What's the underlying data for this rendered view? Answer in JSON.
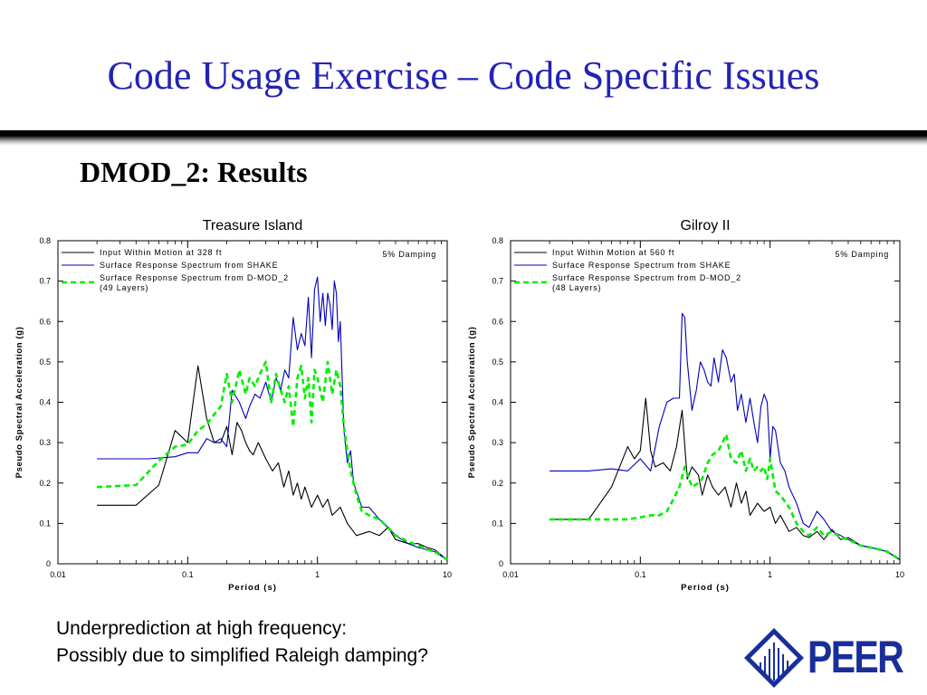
{
  "slide": {
    "title": "Code Usage Exercise – Code Specific Issues",
    "subtitle": "DMOD_2: Results",
    "caption_line1": "Underprediction at high frequency:",
    "caption_line2": "Possibly due to simplified Raleigh damping?",
    "logo_text": "PEER",
    "colors": {
      "title": "#2323b5",
      "logo": "#1a2e9a"
    }
  },
  "chart_data": [
    {
      "type": "line",
      "title": "Treasure Island",
      "xlabel": "Period (s)",
      "ylabel": "Pseudo Spectral Acceleration (g)",
      "xscale": "log",
      "xlim": [
        0.01,
        10
      ],
      "ylim": [
        0,
        0.8
      ],
      "xticks": [
        0.01,
        0.1,
        1,
        10
      ],
      "xtick_labels": [
        "0.01",
        "0.1",
        "1",
        "10"
      ],
      "yticks": [
        0,
        0.1,
        0.2,
        0.3,
        0.4,
        0.5,
        0.6,
        0.7,
        0.8
      ],
      "ytick_labels": [
        "0",
        "0.1",
        "0.2",
        "0.3",
        "0.4",
        "0.5",
        "0.6",
        "0.7",
        "0.8"
      ],
      "annotation": "5% Damping",
      "legend_position": "top-left",
      "series": [
        {
          "name": "Input Within Motion at 328 ft",
          "color": "#000000",
          "style": "solid",
          "x": [
            0.02,
            0.04,
            0.06,
            0.08,
            0.1,
            0.12,
            0.14,
            0.16,
            0.18,
            0.2,
            0.22,
            0.24,
            0.26,
            0.28,
            0.3,
            0.32,
            0.35,
            0.4,
            0.45,
            0.5,
            0.55,
            0.6,
            0.65,
            0.7,
            0.75,
            0.8,
            0.9,
            1.0,
            1.1,
            1.2,
            1.3,
            1.5,
            1.7,
            2.0,
            2.5,
            3.0,
            3.5,
            4.0,
            5.0,
            6.0,
            7.0,
            8.0,
            10.0
          ],
          "y": [
            0.145,
            0.145,
            0.195,
            0.33,
            0.3,
            0.49,
            0.36,
            0.3,
            0.3,
            0.34,
            0.27,
            0.35,
            0.33,
            0.3,
            0.28,
            0.27,
            0.3,
            0.26,
            0.23,
            0.25,
            0.19,
            0.23,
            0.17,
            0.2,
            0.16,
            0.19,
            0.14,
            0.17,
            0.14,
            0.16,
            0.12,
            0.14,
            0.1,
            0.07,
            0.08,
            0.07,
            0.09,
            0.06,
            0.05,
            0.05,
            0.04,
            0.035,
            0.01
          ]
        },
        {
          "name": "Surface Response Spectrum from SHAKE",
          "color": "#0000bb",
          "style": "solid",
          "x": [
            0.02,
            0.05,
            0.08,
            0.1,
            0.12,
            0.14,
            0.16,
            0.18,
            0.2,
            0.22,
            0.25,
            0.28,
            0.3,
            0.33,
            0.36,
            0.4,
            0.44,
            0.48,
            0.52,
            0.56,
            0.6,
            0.65,
            0.7,
            0.75,
            0.8,
            0.85,
            0.9,
            0.95,
            1.0,
            1.05,
            1.1,
            1.15,
            1.2,
            1.25,
            1.3,
            1.35,
            1.4,
            1.45,
            1.5,
            1.6,
            1.7,
            1.8,
            1.9,
            2.0,
            2.2,
            2.5,
            3.0,
            3.5,
            4.0,
            5.0,
            6.0,
            7.0,
            8.0,
            10.0
          ],
          "y": [
            0.26,
            0.26,
            0.265,
            0.275,
            0.275,
            0.31,
            0.3,
            0.31,
            0.29,
            0.43,
            0.4,
            0.36,
            0.39,
            0.42,
            0.41,
            0.45,
            0.4,
            0.46,
            0.43,
            0.48,
            0.46,
            0.61,
            0.53,
            0.57,
            0.54,
            0.66,
            0.51,
            0.68,
            0.71,
            0.6,
            0.67,
            0.59,
            0.67,
            0.64,
            0.58,
            0.7,
            0.67,
            0.55,
            0.6,
            0.33,
            0.25,
            0.28,
            0.2,
            0.18,
            0.14,
            0.14,
            0.11,
            0.09,
            0.07,
            0.05,
            0.04,
            0.035,
            0.03,
            0.01
          ]
        },
        {
          "name": "Surface Response Spectrum from D-MOD_2 (49 Layers)",
          "color": "#00ee00",
          "style": "dashed",
          "x": [
            0.02,
            0.04,
            0.06,
            0.08,
            0.1,
            0.12,
            0.14,
            0.16,
            0.18,
            0.2,
            0.22,
            0.25,
            0.28,
            0.3,
            0.33,
            0.36,
            0.4,
            0.44,
            0.48,
            0.52,
            0.56,
            0.6,
            0.65,
            0.7,
            0.75,
            0.8,
            0.85,
            0.9,
            0.95,
            1.0,
            1.1,
            1.2,
            1.3,
            1.4,
            1.5,
            1.6,
            1.7,
            1.8,
            2.0,
            2.2,
            2.5,
            3.0,
            3.5,
            4.0,
            5.0,
            6.0,
            7.0,
            8.0,
            10.0
          ],
          "y": [
            0.19,
            0.195,
            0.255,
            0.29,
            0.295,
            0.33,
            0.345,
            0.37,
            0.39,
            0.47,
            0.4,
            0.48,
            0.42,
            0.46,
            0.44,
            0.47,
            0.5,
            0.4,
            0.47,
            0.43,
            0.4,
            0.44,
            0.34,
            0.46,
            0.49,
            0.41,
            0.46,
            0.35,
            0.48,
            0.46,
            0.4,
            0.5,
            0.42,
            0.48,
            0.44,
            0.34,
            0.28,
            0.23,
            0.17,
            0.13,
            0.12,
            0.11,
            0.09,
            0.07,
            0.055,
            0.045,
            0.035,
            0.03,
            0.01
          ]
        }
      ]
    },
    {
      "type": "line",
      "title": "Gilroy II",
      "xlabel": "Period (s)",
      "ylabel": "Pseudo Spectral Acceleration (g)",
      "xscale": "log",
      "xlim": [
        0.01,
        10
      ],
      "ylim": [
        0,
        0.8
      ],
      "xticks": [
        0.01,
        0.1,
        1,
        10
      ],
      "xtick_labels": [
        "0.01",
        "0.1",
        "1",
        "10"
      ],
      "yticks": [
        0,
        0.1,
        0.2,
        0.3,
        0.4,
        0.5,
        0.6,
        0.7,
        0.8
      ],
      "ytick_labels": [
        "0",
        "0.1",
        "0.2",
        "0.3",
        "0.4",
        "0.5",
        "0.6",
        "0.7",
        "0.8"
      ],
      "annotation": "5% Damping",
      "legend_position": "top-left",
      "series": [
        {
          "name": "Input Within Motion at 560 ft",
          "color": "#000000",
          "style": "solid",
          "x": [
            0.02,
            0.04,
            0.06,
            0.08,
            0.09,
            0.1,
            0.11,
            0.12,
            0.13,
            0.15,
            0.17,
            0.19,
            0.21,
            0.23,
            0.25,
            0.28,
            0.3,
            0.33,
            0.36,
            0.4,
            0.45,
            0.5,
            0.55,
            0.6,
            0.65,
            0.7,
            0.8,
            0.9,
            1.0,
            1.1,
            1.2,
            1.4,
            1.6,
            1.8,
            2.0,
            2.3,
            2.6,
            3.0,
            3.5,
            4.0,
            5.0,
            6.0,
            7.0,
            8.0,
            10.0
          ],
          "y": [
            0.11,
            0.11,
            0.19,
            0.29,
            0.26,
            0.28,
            0.41,
            0.28,
            0.24,
            0.25,
            0.23,
            0.29,
            0.38,
            0.21,
            0.24,
            0.22,
            0.17,
            0.22,
            0.19,
            0.17,
            0.19,
            0.14,
            0.2,
            0.15,
            0.18,
            0.12,
            0.15,
            0.13,
            0.14,
            0.1,
            0.12,
            0.08,
            0.09,
            0.07,
            0.065,
            0.08,
            0.06,
            0.085,
            0.06,
            0.065,
            0.045,
            0.04,
            0.035,
            0.03,
            0.01
          ]
        },
        {
          "name": "Surface Response Spectrum from SHAKE",
          "color": "#0000bb",
          "style": "solid",
          "x": [
            0.02,
            0.04,
            0.06,
            0.08,
            0.1,
            0.12,
            0.14,
            0.16,
            0.18,
            0.2,
            0.21,
            0.22,
            0.23,
            0.25,
            0.27,
            0.29,
            0.31,
            0.33,
            0.35,
            0.37,
            0.4,
            0.43,
            0.46,
            0.5,
            0.53,
            0.56,
            0.6,
            0.65,
            0.7,
            0.75,
            0.8,
            0.85,
            0.9,
            0.95,
            1.0,
            1.05,
            1.1,
            1.2,
            1.3,
            1.4,
            1.6,
            1.8,
            2.0,
            2.3,
            2.6,
            3.0,
            3.5,
            4.0,
            5.0,
            6.0,
            7.0,
            8.0,
            10.0
          ],
          "y": [
            0.23,
            0.23,
            0.235,
            0.23,
            0.26,
            0.23,
            0.34,
            0.4,
            0.41,
            0.41,
            0.62,
            0.61,
            0.5,
            0.38,
            0.43,
            0.5,
            0.48,
            0.45,
            0.44,
            0.51,
            0.45,
            0.53,
            0.51,
            0.45,
            0.47,
            0.38,
            0.42,
            0.35,
            0.41,
            0.35,
            0.3,
            0.39,
            0.42,
            0.4,
            0.26,
            0.34,
            0.33,
            0.25,
            0.23,
            0.19,
            0.15,
            0.1,
            0.09,
            0.13,
            0.11,
            0.08,
            0.07,
            0.06,
            0.045,
            0.04,
            0.035,
            0.03,
            0.01
          ]
        },
        {
          "name": "Surface Response Spectrum from D-MOD_2 (48 Layers)",
          "color": "#00ee00",
          "style": "dashed",
          "x": [
            0.02,
            0.05,
            0.08,
            0.1,
            0.12,
            0.14,
            0.16,
            0.18,
            0.2,
            0.22,
            0.25,
            0.28,
            0.3,
            0.33,
            0.36,
            0.4,
            0.43,
            0.46,
            0.5,
            0.55,
            0.6,
            0.65,
            0.7,
            0.75,
            0.8,
            0.85,
            0.9,
            0.95,
            1.0,
            1.1,
            1.2,
            1.4,
            1.6,
            1.8,
            2.0,
            2.3,
            2.6,
            3.0,
            3.5,
            4.0,
            5.0,
            6.0,
            7.0,
            8.0,
            10.0
          ],
          "y": [
            0.11,
            0.11,
            0.11,
            0.115,
            0.12,
            0.12,
            0.13,
            0.16,
            0.19,
            0.24,
            0.19,
            0.2,
            0.21,
            0.25,
            0.27,
            0.28,
            0.3,
            0.32,
            0.26,
            0.25,
            0.28,
            0.23,
            0.26,
            0.23,
            0.24,
            0.23,
            0.24,
            0.21,
            0.26,
            0.18,
            0.17,
            0.14,
            0.1,
            0.08,
            0.07,
            0.09,
            0.07,
            0.08,
            0.065,
            0.06,
            0.045,
            0.04,
            0.035,
            0.03,
            0.01
          ]
        }
      ]
    }
  ]
}
